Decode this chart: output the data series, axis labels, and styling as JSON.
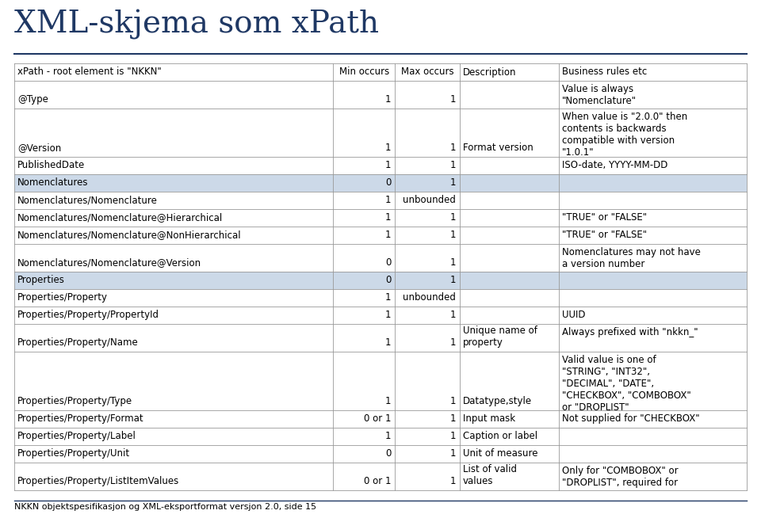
{
  "title": "XML-skjema som xPath",
  "footer": "NKKN objektspesifikasjon og XML-eksportformat versjon 2.0, side 15",
  "header_row": [
    "xPath - root element is \"NKKN\"",
    "Min occurs",
    "Max occurs",
    "Description",
    "Business rules etc"
  ],
  "rows": [
    {
      "xpath": "@Type",
      "min": "1",
      "max": "1",
      "desc": "",
      "rules": "Value is always\n\"Nomenclature\"",
      "highlight": false
    },
    {
      "xpath": "@Version",
      "min": "1",
      "max": "1",
      "desc": "Format version",
      "rules": "When value is \"2.0.0\" then\ncontents is backwards\ncompatible with version\n\"1.0.1\"",
      "highlight": false
    },
    {
      "xpath": "PublishedDate",
      "min": "1",
      "max": "1",
      "desc": "",
      "rules": "ISO-date, YYYY-MM-DD",
      "highlight": false
    },
    {
      "xpath": "Nomenclatures",
      "min": "0",
      "max": "1",
      "desc": "",
      "rules": "",
      "highlight": true
    },
    {
      "xpath": "Nomenclatures/Nomenclature",
      "min": "1",
      "max": "unbounded",
      "desc": "",
      "rules": "",
      "highlight": false
    },
    {
      "xpath": "Nomenclatures/Nomenclature@Hierarchical",
      "min": "1",
      "max": "1",
      "desc": "",
      "rules": "\"TRUE\" or \"FALSE\"",
      "highlight": false
    },
    {
      "xpath": "Nomenclatures/Nomenclature@NonHierarchical",
      "min": "1",
      "max": "1",
      "desc": "",
      "rules": "\"TRUE\" or \"FALSE\"",
      "highlight": false
    },
    {
      "xpath": "Nomenclatures/Nomenclature@Version",
      "min": "0",
      "max": "1",
      "desc": "",
      "rules": "Nomenclatures may not have\na version number",
      "highlight": false
    },
    {
      "xpath": "Properties",
      "min": "0",
      "max": "1",
      "desc": "",
      "rules": "",
      "highlight": true
    },
    {
      "xpath": "Properties/Property",
      "min": "1",
      "max": "unbounded",
      "desc": "",
      "rules": "",
      "highlight": false
    },
    {
      "xpath": "Properties/Property/PropertyId",
      "min": "1",
      "max": "1",
      "desc": "",
      "rules": "UUID",
      "highlight": false
    },
    {
      "xpath": "Properties/Property/Name",
      "min": "1",
      "max": "1",
      "desc": "Unique name of\nproperty",
      "rules": "Always prefixed with \"nkkn_\"",
      "highlight": false
    },
    {
      "xpath": "Properties/Property/Type",
      "min": "1",
      "max": "1",
      "desc": "Datatype,style",
      "rules": "Valid value is one of\n\"STRING\", \"INT32\",\n\"DECIMAL\", \"DATE\",\n\"CHECKBOX\", \"COMBOBOX\"\nor \"DROPLIST\"",
      "highlight": false
    },
    {
      "xpath": "Properties/Property/Format",
      "min": "0 or 1",
      "max": "1",
      "desc": "Input mask",
      "rules": "Not supplied for \"CHECKBOX\"",
      "highlight": false
    },
    {
      "xpath": "Properties/Property/Label",
      "min": "1",
      "max": "1",
      "desc": "Caption or label",
      "rules": "",
      "highlight": false
    },
    {
      "xpath": "Properties/Property/Unit",
      "min": "0",
      "max": "1",
      "desc": "Unit of measure",
      "rules": "",
      "highlight": false
    },
    {
      "xpath": "Properties/Property/ListItemValues",
      "min": "0 or 1",
      "max": "1",
      "desc": "List of valid\nvalues",
      "rules": "Only for \"COMBOBOX\" or\n\"DROPLIST\", required for",
      "highlight": false
    }
  ],
  "highlight_color": "#ccd9e8",
  "border_color": "#999999",
  "title_color": "#1f3864",
  "text_color": "#000000",
  "header_line_color": "#1f3864",
  "title_fontsize": 28,
  "table_fontsize": 8.5,
  "header_fontsize": 8.5
}
